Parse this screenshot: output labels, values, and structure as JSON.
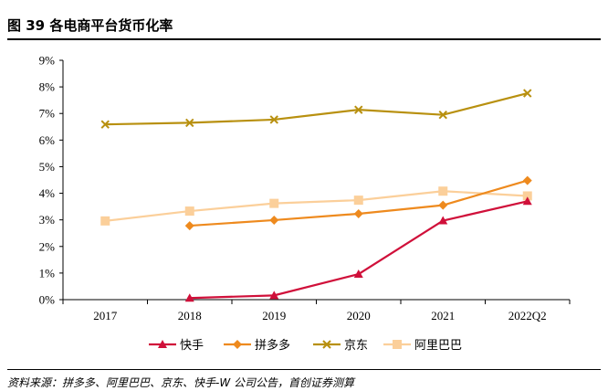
{
  "figure": {
    "title": "图 39  各电商平台货币化率",
    "source": "资料来源：拼多多、阿里巴巴、京东、快手-W 公司公告，首创证券测算"
  },
  "chart_data": {
    "type": "line",
    "categories": [
      "2017",
      "2018",
      "2019",
      "2020",
      "2021",
      "2022Q2"
    ],
    "ylim": [
      0,
      9
    ],
    "yticks": [
      0,
      1,
      2,
      3,
      4,
      5,
      6,
      7,
      8,
      9
    ],
    "ytick_labels": [
      "0%",
      "1%",
      "2%",
      "3%",
      "4%",
      "5%",
      "6%",
      "7%",
      "8%",
      "9%"
    ],
    "xlabel": "",
    "ylabel": "",
    "grid": false,
    "legend_position": "bottom",
    "series": [
      {
        "name": "快手",
        "color": "#d0103a",
        "marker": "triangle",
        "values": [
          null,
          0.06,
          0.16,
          0.96,
          2.97,
          3.7
        ]
      },
      {
        "name": "拼多多",
        "color": "#ee8a1e",
        "marker": "diamond",
        "values": [
          null,
          2.78,
          2.99,
          3.23,
          3.55,
          4.48
        ]
      },
      {
        "name": "京东",
        "color": "#b8900f",
        "marker": "x",
        "values": [
          6.59,
          6.65,
          6.77,
          7.14,
          6.95,
          7.76
        ]
      },
      {
        "name": "阿里巴巴",
        "color": "#fbcf9a",
        "marker": "square",
        "values": [
          2.96,
          3.33,
          3.62,
          3.74,
          4.08,
          3.9
        ]
      }
    ]
  }
}
